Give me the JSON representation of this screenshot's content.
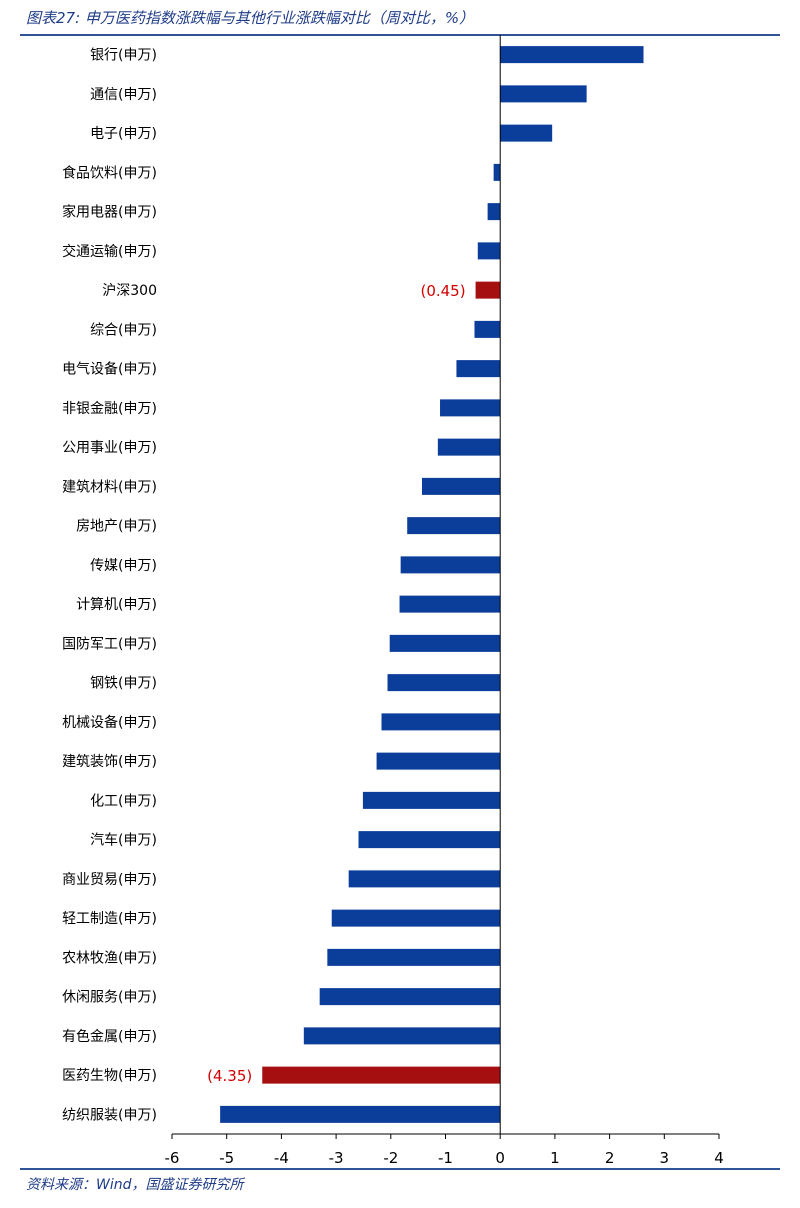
{
  "figure": {
    "title": "图表27:  申万医药指数涨跌幅与其他行业涨跌幅对比（周对比，%）",
    "source": "资料来源：Wind，国盛证券研究所"
  },
  "colors": {
    "bar": "#0b3d9a",
    "highlight": "#a50f0f",
    "label_highlight": "#d40000",
    "axis": "#000000",
    "header_rule": "#2f5597",
    "header_text": "#1f3c88"
  },
  "chart_data": {
    "type": "bar",
    "orientation": "horizontal",
    "title": "",
    "xlabel": "",
    "ylabel": "",
    "xlim": [
      -6,
      4
    ],
    "xticks": [
      -6,
      -5,
      -4,
      -3,
      -2,
      -1,
      0,
      1,
      2,
      3,
      4
    ],
    "grid": false,
    "legend": "none",
    "categories": [
      "银行(申万)",
      "通信(申万)",
      "电子(申万)",
      "食品饮料(申万)",
      "家用电器(申万)",
      "交通运输(申万)",
      "沪深300",
      "综合(申万)",
      "电气设备(申万)",
      "非银金融(申万)",
      "公用事业(申万)",
      "建筑材料(申万)",
      "房地产(申万)",
      "传媒(申万)",
      "计算机(申万)",
      "国防军工(申万)",
      "钢铁(申万)",
      "机械设备(申万)",
      "建筑装饰(申万)",
      "化工(申万)",
      "汽车(申万)",
      "商业贸易(申万)",
      "轻工制造(申万)",
      "农林牧渔(申万)",
      "休闲服务(申万)",
      "有色金属(申万)",
      "医药生物(申万)",
      "纺织服装(申万)"
    ],
    "values": [
      2.62,
      1.58,
      0.95,
      -0.12,
      -0.23,
      -0.41,
      -0.45,
      -0.47,
      -0.8,
      -1.1,
      -1.14,
      -1.43,
      -1.7,
      -1.82,
      -1.84,
      -2.02,
      -2.06,
      -2.17,
      -2.26,
      -2.51,
      -2.59,
      -2.77,
      -3.08,
      -3.16,
      -3.3,
      -3.59,
      -4.35,
      -5.12
    ],
    "highlight": [
      {
        "category": "沪深300",
        "label": "(0.45)"
      },
      {
        "category": "医药生物(申万)",
        "label": "(4.35)"
      }
    ]
  }
}
